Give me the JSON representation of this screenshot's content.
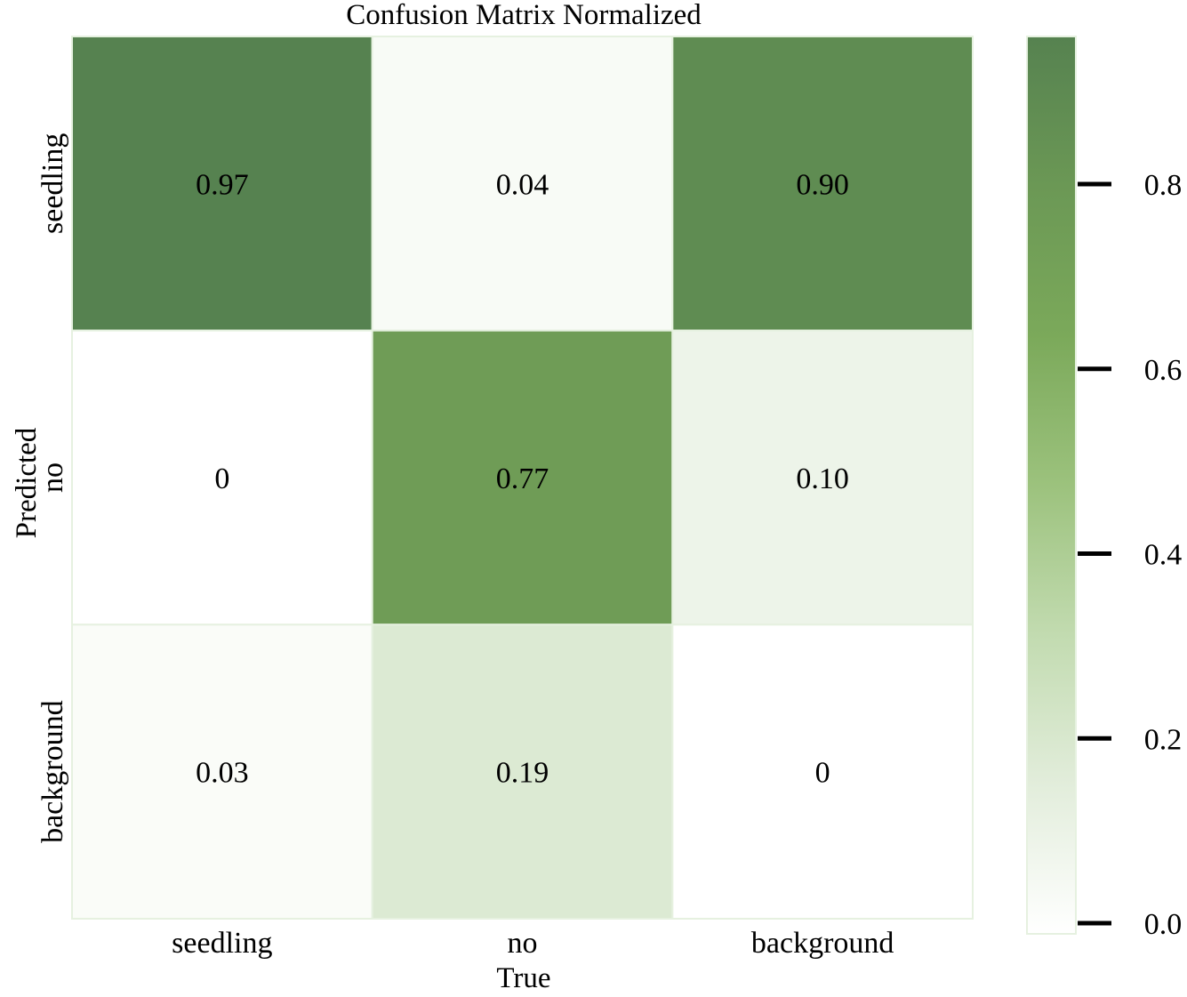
{
  "chart_data": {
    "type": "heatmap",
    "title": "Confusion Matrix Normalized",
    "xlabel": "True",
    "ylabel": "Predicted",
    "x_categories": [
      "seedling",
      "no",
      "background"
    ],
    "y_categories": [
      "seedling",
      "no",
      "background"
    ],
    "values": [
      [
        0.97,
        0.04,
        0.9
      ],
      [
        0.0,
        0.77,
        0.1
      ],
      [
        0.03,
        0.19,
        0.0
      ]
    ],
    "cell_labels": [
      [
        "0.97",
        "0.04",
        "0.90"
      ],
      [
        "0",
        "0.77",
        "0.10"
      ],
      [
        "0.03",
        "0.19",
        "0"
      ]
    ],
    "colorbar": {
      "range": [
        0.0,
        0.97
      ],
      "ticks": [
        0.0,
        0.2,
        0.4,
        0.6,
        0.8
      ],
      "tick_labels": [
        "0.0",
        "0.2",
        "0.4",
        "0.6",
        "0.8"
      ]
    },
    "colormap": [
      "#ffffff",
      "#e2eddb",
      "#c2dbb0",
      "#9cc27d",
      "#7ba95a",
      "#6b9855",
      "#568250"
    ],
    "grid_line_color": "#e6f1e0"
  }
}
